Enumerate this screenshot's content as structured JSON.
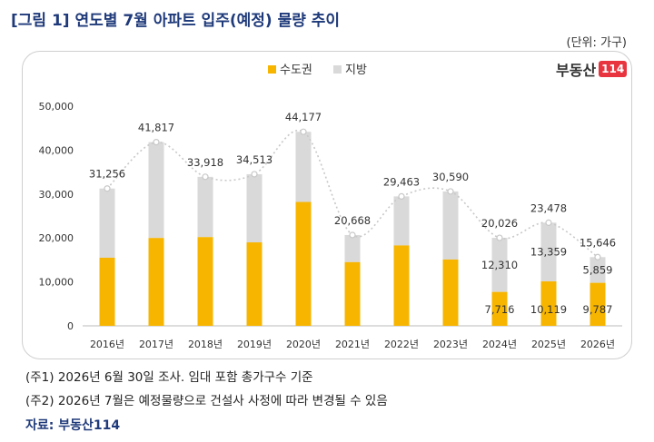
{
  "title": "[그림 1] 연도별 7월 아파트 입주(예정) 물량 추이",
  "unit": "(단위: 가구)",
  "logo": {
    "text": "부동산",
    "box": "114"
  },
  "notes": [
    "(주1) 2026년 6월 30일 조사. 임대 포함 총가구수 기준",
    "(주2) 2026년 7월은 예정물량으로 건설사 사정에 따라 변경될 수 있음"
  ],
  "source": "자료: 부동산114",
  "colors": {
    "metro": "#f7b500",
    "local": "#d9d9d9",
    "dotted": "#c8c8c8"
  },
  "chart_data": {
    "type": "bar",
    "stacked": true,
    "categories": [
      "2016년",
      "2017년",
      "2018년",
      "2019년",
      "2020년",
      "2021년",
      "2022년",
      "2023년",
      "2024년",
      "2025년",
      "2026년"
    ],
    "series": [
      {
        "name": "수도권",
        "values": [
          15500,
          20000,
          20200,
          19000,
          28200,
          14500,
          18300,
          15100,
          7716,
          10119,
          9787
        ]
      },
      {
        "name": "지방",
        "values": [
          15756,
          21817,
          13718,
          15513,
          15977,
          6168,
          11163,
          15490,
          12310,
          13359,
          5859
        ]
      }
    ],
    "totals": [
      31256,
      41817,
      33918,
      34513,
      44177,
      20668,
      29463,
      30590,
      20026,
      23478,
      15646
    ],
    "total_labels": [
      "31,256",
      "41,817",
      "33,918",
      "34,513",
      "44,177",
      "20,668",
      "29,463",
      "30,590",
      "20,026",
      "23,478",
      "15,646"
    ],
    "segment_labels": {
      "2024년": {
        "metro": "7,716",
        "local": "12,310"
      },
      "2025년": {
        "metro": "10,119",
        "local": "13,359"
      },
      "2026년": {
        "metro": "9,787",
        "local": "5,859"
      }
    },
    "yticks": [
      "0",
      "10,000",
      "20,000",
      "30,000",
      "40,000",
      "50,000"
    ],
    "ylim": [
      0,
      50000
    ],
    "legend": {
      "position": "top-center"
    },
    "grid": false
  }
}
